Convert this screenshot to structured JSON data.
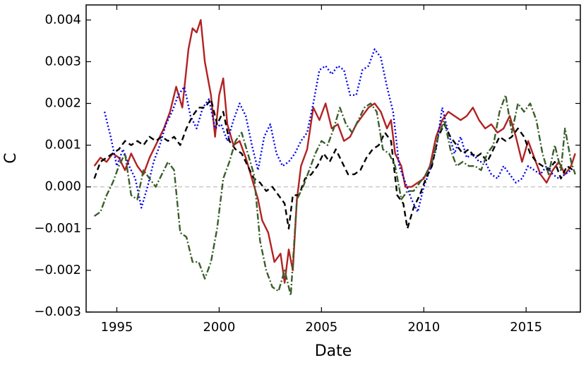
{
  "chart_data": {
    "type": "line",
    "xlabel": "Date",
    "ylabel": "C",
    "xlim": [
      1993.5,
      2017.65
    ],
    "ylim": [
      -0.003,
      0.00436
    ],
    "xticks": [
      1995,
      2000,
      2005,
      2010,
      2015
    ],
    "yticks": [
      {
        "value": -0.003,
        "label": "−0.003"
      },
      {
        "value": -0.002,
        "label": "−0.002"
      },
      {
        "value": -0.001,
        "label": "−0.001"
      },
      {
        "value": 0,
        "label": "0.000"
      },
      0.001,
      0.002,
      0.003,
      0.004
    ],
    "hline": {
      "y": 0,
      "color": "#bbbbbb",
      "dash": "6 4"
    },
    "series": [
      {
        "color": "#b22222",
        "dash": "none",
        "x": [
          1993.9,
          1994.2,
          1994.5,
          1994.8,
          1995.1,
          1995.4,
          1995.7,
          1996.0,
          1996.3,
          1996.6,
          1997.0,
          1997.3,
          1997.6,
          1997.9,
          1998.2,
          1998.5,
          1998.7,
          1998.9,
          1999.1,
          1999.3,
          1999.6,
          1999.8,
          2000.0,
          2000.2,
          2000.4,
          2000.7,
          2001.0,
          2001.3,
          2001.6,
          2001.9,
          2002.1,
          2002.4,
          2002.7,
          2003.0,
          2003.2,
          2003.4,
          2003.6,
          2003.8,
          2004.0,
          2004.3,
          2004.6,
          2004.9,
          2005.2,
          2005.5,
          2005.8,
          2006.1,
          2006.4,
          2006.7,
          2007.0,
          2007.3,
          2007.6,
          2007.9,
          2008.2,
          2008.4,
          2008.6,
          2008.9,
          2009.1,
          2009.4,
          2009.7,
          2010.0,
          2010.3,
          2010.6,
          2010.9,
          2011.2,
          2011.5,
          2011.8,
          2012.1,
          2012.4,
          2012.7,
          2013.0,
          2013.3,
          2013.6,
          2013.9,
          2014.2,
          2014.5,
          2014.8,
          2015.1,
          2015.4,
          2015.7,
          2016.0,
          2016.3,
          2016.6,
          2016.9,
          2017.2,
          2017.4
        ],
        "values": [
          0.0005,
          0.0007,
          0.0006,
          0.0008,
          0.0007,
          0.0004,
          0.0008,
          0.0005,
          0.0003,
          0.0007,
          0.0011,
          0.0014,
          0.0018,
          0.0024,
          0.0019,
          0.0033,
          0.0038,
          0.0037,
          0.004,
          0.003,
          0.0022,
          0.0012,
          0.0022,
          0.0026,
          0.0015,
          0.001,
          0.0011,
          0.0007,
          0.0002,
          -0.0003,
          -0.0008,
          -0.0011,
          -0.0018,
          -0.0016,
          -0.0023,
          -0.0015,
          -0.002,
          -0.0003,
          0.0005,
          0.0009,
          0.0019,
          0.0016,
          0.002,
          0.0014,
          0.0015,
          0.0011,
          0.0012,
          0.0015,
          0.0017,
          0.0019,
          0.002,
          0.0018,
          0.0014,
          0.0016,
          0.0008,
          0.0005,
          0.0,
          0.0,
          0.0001,
          0.0002,
          0.0005,
          0.0012,
          0.0016,
          0.0018,
          0.0017,
          0.0016,
          0.0017,
          0.0019,
          0.0016,
          0.0014,
          0.0015,
          0.0013,
          0.0014,
          0.0017,
          0.0012,
          0.0006,
          0.0011,
          0.0007,
          0.0003,
          0.0001,
          0.0004,
          0.0006,
          0.0003,
          0.0005,
          0.0008
        ]
      },
      {
        "color": "#0000ee",
        "dash": "2 3",
        "x": [
          1994.4,
          1994.7,
          1995.0,
          1995.3,
          1995.6,
          1995.9,
          1996.2,
          1996.5,
          1996.8,
          1997.1,
          1997.4,
          1997.7,
          1998.0,
          1998.3,
          1998.6,
          1998.9,
          1999.2,
          1999.5,
          1999.8,
          2000.1,
          2000.4,
          2000.7,
          2001.0,
          2001.3,
          2001.6,
          2001.9,
          2002.2,
          2002.5,
          2002.8,
          2003.1,
          2003.4,
          2003.7,
          2004.0,
          2004.3,
          2004.6,
          2004.9,
          2005.2,
          2005.5,
          2005.8,
          2006.1,
          2006.4,
          2006.7,
          2007.0,
          2007.3,
          2007.6,
          2007.9,
          2008.2,
          2008.5,
          2008.8,
          2009.1,
          2009.4,
          2009.7,
          2010.0,
          2010.3,
          2010.6,
          2010.9,
          2011.2,
          2011.5,
          2011.8,
          2012.1,
          2012.4,
          2012.7,
          2013.0,
          2013.3,
          2013.6,
          2013.9,
          2014.2,
          2014.5,
          2014.8,
          2015.1,
          2015.4,
          2015.7,
          2016.0,
          2016.3,
          2016.6,
          2016.9,
          2017.2
        ],
        "values": [
          0.0018,
          0.0012,
          0.0005,
          0.0009,
          0.0005,
          0.0002,
          -0.0005,
          0.0,
          0.0006,
          0.001,
          0.0015,
          0.0018,
          0.0022,
          0.0024,
          0.0017,
          0.0014,
          0.0019,
          0.0021,
          0.0014,
          0.0015,
          0.0011,
          0.0016,
          0.002,
          0.0017,
          0.001,
          0.0004,
          0.0012,
          0.0015,
          0.0008,
          0.0005,
          0.0006,
          0.0008,
          0.0011,
          0.0013,
          0.002,
          0.0028,
          0.0029,
          0.0027,
          0.0029,
          0.0028,
          0.0022,
          0.0022,
          0.0028,
          0.0029,
          0.0033,
          0.0031,
          0.0024,
          0.0018,
          0.0005,
          0.0001,
          -0.0003,
          -0.0006,
          0.0,
          0.0004,
          0.0009,
          0.0019,
          0.0013,
          0.0008,
          0.0012,
          0.0007,
          0.0008,
          0.0006,
          0.0006,
          0.0003,
          0.0002,
          0.0005,
          0.0003,
          0.0001,
          0.0002,
          0.0005,
          0.0004,
          0.0003,
          0.0005,
          0.0003,
          0.0002,
          0.0003,
          0.0004
        ]
      },
      {
        "color": "#000000",
        "dash": "8 5",
        "x": [
          1993.9,
          1994.2,
          1994.5,
          1994.8,
          1995.1,
          1995.4,
          1995.7,
          1996.0,
          1996.3,
          1996.6,
          1996.9,
          1997.2,
          1997.5,
          1997.8,
          1998.1,
          1998.4,
          1998.7,
          1999.0,
          1999.3,
          1999.6,
          1999.9,
          2000.2,
          2000.5,
          2000.8,
          2001.1,
          2001.4,
          2001.7,
          2002.0,
          2002.3,
          2002.6,
          2002.9,
          2003.2,
          2003.4,
          2003.6,
          2003.9,
          2004.2,
          2004.5,
          2004.8,
          2005.1,
          2005.4,
          2005.7,
          2006.0,
          2006.3,
          2006.6,
          2006.9,
          2007.2,
          2007.5,
          2007.8,
          2008.1,
          2008.4,
          2008.7,
          2009.0,
          2009.2,
          2009.5,
          2009.8,
          2010.1,
          2010.4,
          2010.7,
          2011.0,
          2011.3,
          2011.6,
          2011.9,
          2012.2,
          2012.5,
          2012.8,
          2013.1,
          2013.4,
          2013.7,
          2014.0,
          2014.3,
          2014.6,
          2014.9,
          2015.2,
          2015.5,
          2015.8,
          2016.1,
          2016.4,
          2016.7,
          2017.0,
          2017.3
        ],
        "values": [
          0.0002,
          0.0006,
          0.0007,
          0.0008,
          0.0009,
          0.0011,
          0.001,
          0.0011,
          0.001,
          0.0012,
          0.0011,
          0.0012,
          0.0011,
          0.0012,
          0.001,
          0.0014,
          0.0017,
          0.0019,
          0.0019,
          0.0021,
          0.0015,
          0.0018,
          0.0011,
          0.0009,
          0.0008,
          0.0005,
          0.0002,
          0.0001,
          -0.0001,
          0.0,
          -0.0002,
          -0.0004,
          -0.001,
          -0.0002,
          -0.0002,
          0.0002,
          0.0003,
          0.0005,
          0.0008,
          0.0006,
          0.0009,
          0.0006,
          0.0003,
          0.0003,
          0.0004,
          0.0007,
          0.0009,
          0.001,
          0.0013,
          0.0011,
          -0.0002,
          -0.0004,
          -0.001,
          -0.0005,
          -0.0002,
          0.0002,
          0.0005,
          0.0012,
          0.0015,
          0.0012,
          0.001,
          0.0008,
          0.0009,
          0.0007,
          0.0008,
          0.0006,
          0.0009,
          0.0012,
          0.0011,
          0.0012,
          0.0014,
          0.0012,
          0.0008,
          0.0006,
          0.0005,
          0.0004,
          0.0006,
          0.0002,
          0.0005,
          0.0004
        ]
      },
      {
        "color": "#3b5e2b",
        "dash": "9 3 2 3",
        "x": [
          1993.9,
          1994.2,
          1994.5,
          1994.8,
          1995.1,
          1995.4,
          1995.7,
          1996.0,
          1996.3,
          1996.6,
          1996.9,
          1997.2,
          1997.5,
          1997.8,
          1998.1,
          1998.4,
          1998.7,
          1999.0,
          1999.3,
          1999.6,
          1999.9,
          2000.2,
          2000.5,
          2000.8,
          2001.1,
          2001.4,
          2001.7,
          2002.0,
          2002.3,
          2002.6,
          2002.9,
          2003.2,
          2003.5,
          2003.8,
          2004.1,
          2004.4,
          2004.7,
          2005.0,
          2005.3,
          2005.6,
          2005.9,
          2006.2,
          2006.5,
          2006.8,
          2007.1,
          2007.4,
          2007.7,
          2008.0,
          2008.3,
          2008.6,
          2008.9,
          2009.2,
          2009.5,
          2009.8,
          2010.1,
          2010.4,
          2010.7,
          2011.0,
          2011.3,
          2011.6,
          2011.9,
          2012.2,
          2012.5,
          2012.8,
          2013.1,
          2013.4,
          2013.7,
          2014.0,
          2014.3,
          2014.6,
          2014.9,
          2015.2,
          2015.5,
          2015.8,
          2016.1,
          2016.4,
          2016.7,
          2016.9,
          2017.2,
          2017.4
        ],
        "values": [
          -0.0007,
          -0.0006,
          -0.0002,
          0.0001,
          0.0005,
          0.0008,
          -0.0002,
          -0.0003,
          0.0004,
          0.0002,
          0.0,
          0.0003,
          0.0006,
          0.0004,
          -0.0011,
          -0.0012,
          -0.0018,
          -0.0018,
          -0.0022,
          -0.0018,
          -0.001,
          0.0002,
          0.0006,
          0.0011,
          0.0013,
          0.0008,
          0.0003,
          -0.0013,
          -0.002,
          -0.0024,
          -0.0025,
          -0.002,
          -0.0026,
          -0.0003,
          0.0,
          0.0004,
          0.0008,
          0.0011,
          0.001,
          0.0014,
          0.0019,
          0.0015,
          0.0013,
          0.0016,
          0.0019,
          0.002,
          0.0018,
          0.0009,
          0.0008,
          0.0005,
          -0.0003,
          -0.0001,
          -0.0001,
          0.0001,
          0.0003,
          0.0006,
          0.0012,
          0.0016,
          0.0009,
          0.0005,
          0.0006,
          0.0005,
          0.0005,
          0.0004,
          0.0008,
          0.001,
          0.0018,
          0.0022,
          0.0013,
          0.002,
          0.0018,
          0.002,
          0.0016,
          0.0008,
          0.0003,
          0.001,
          0.0004,
          0.0014,
          0.0006,
          0.0003
        ]
      }
    ]
  }
}
